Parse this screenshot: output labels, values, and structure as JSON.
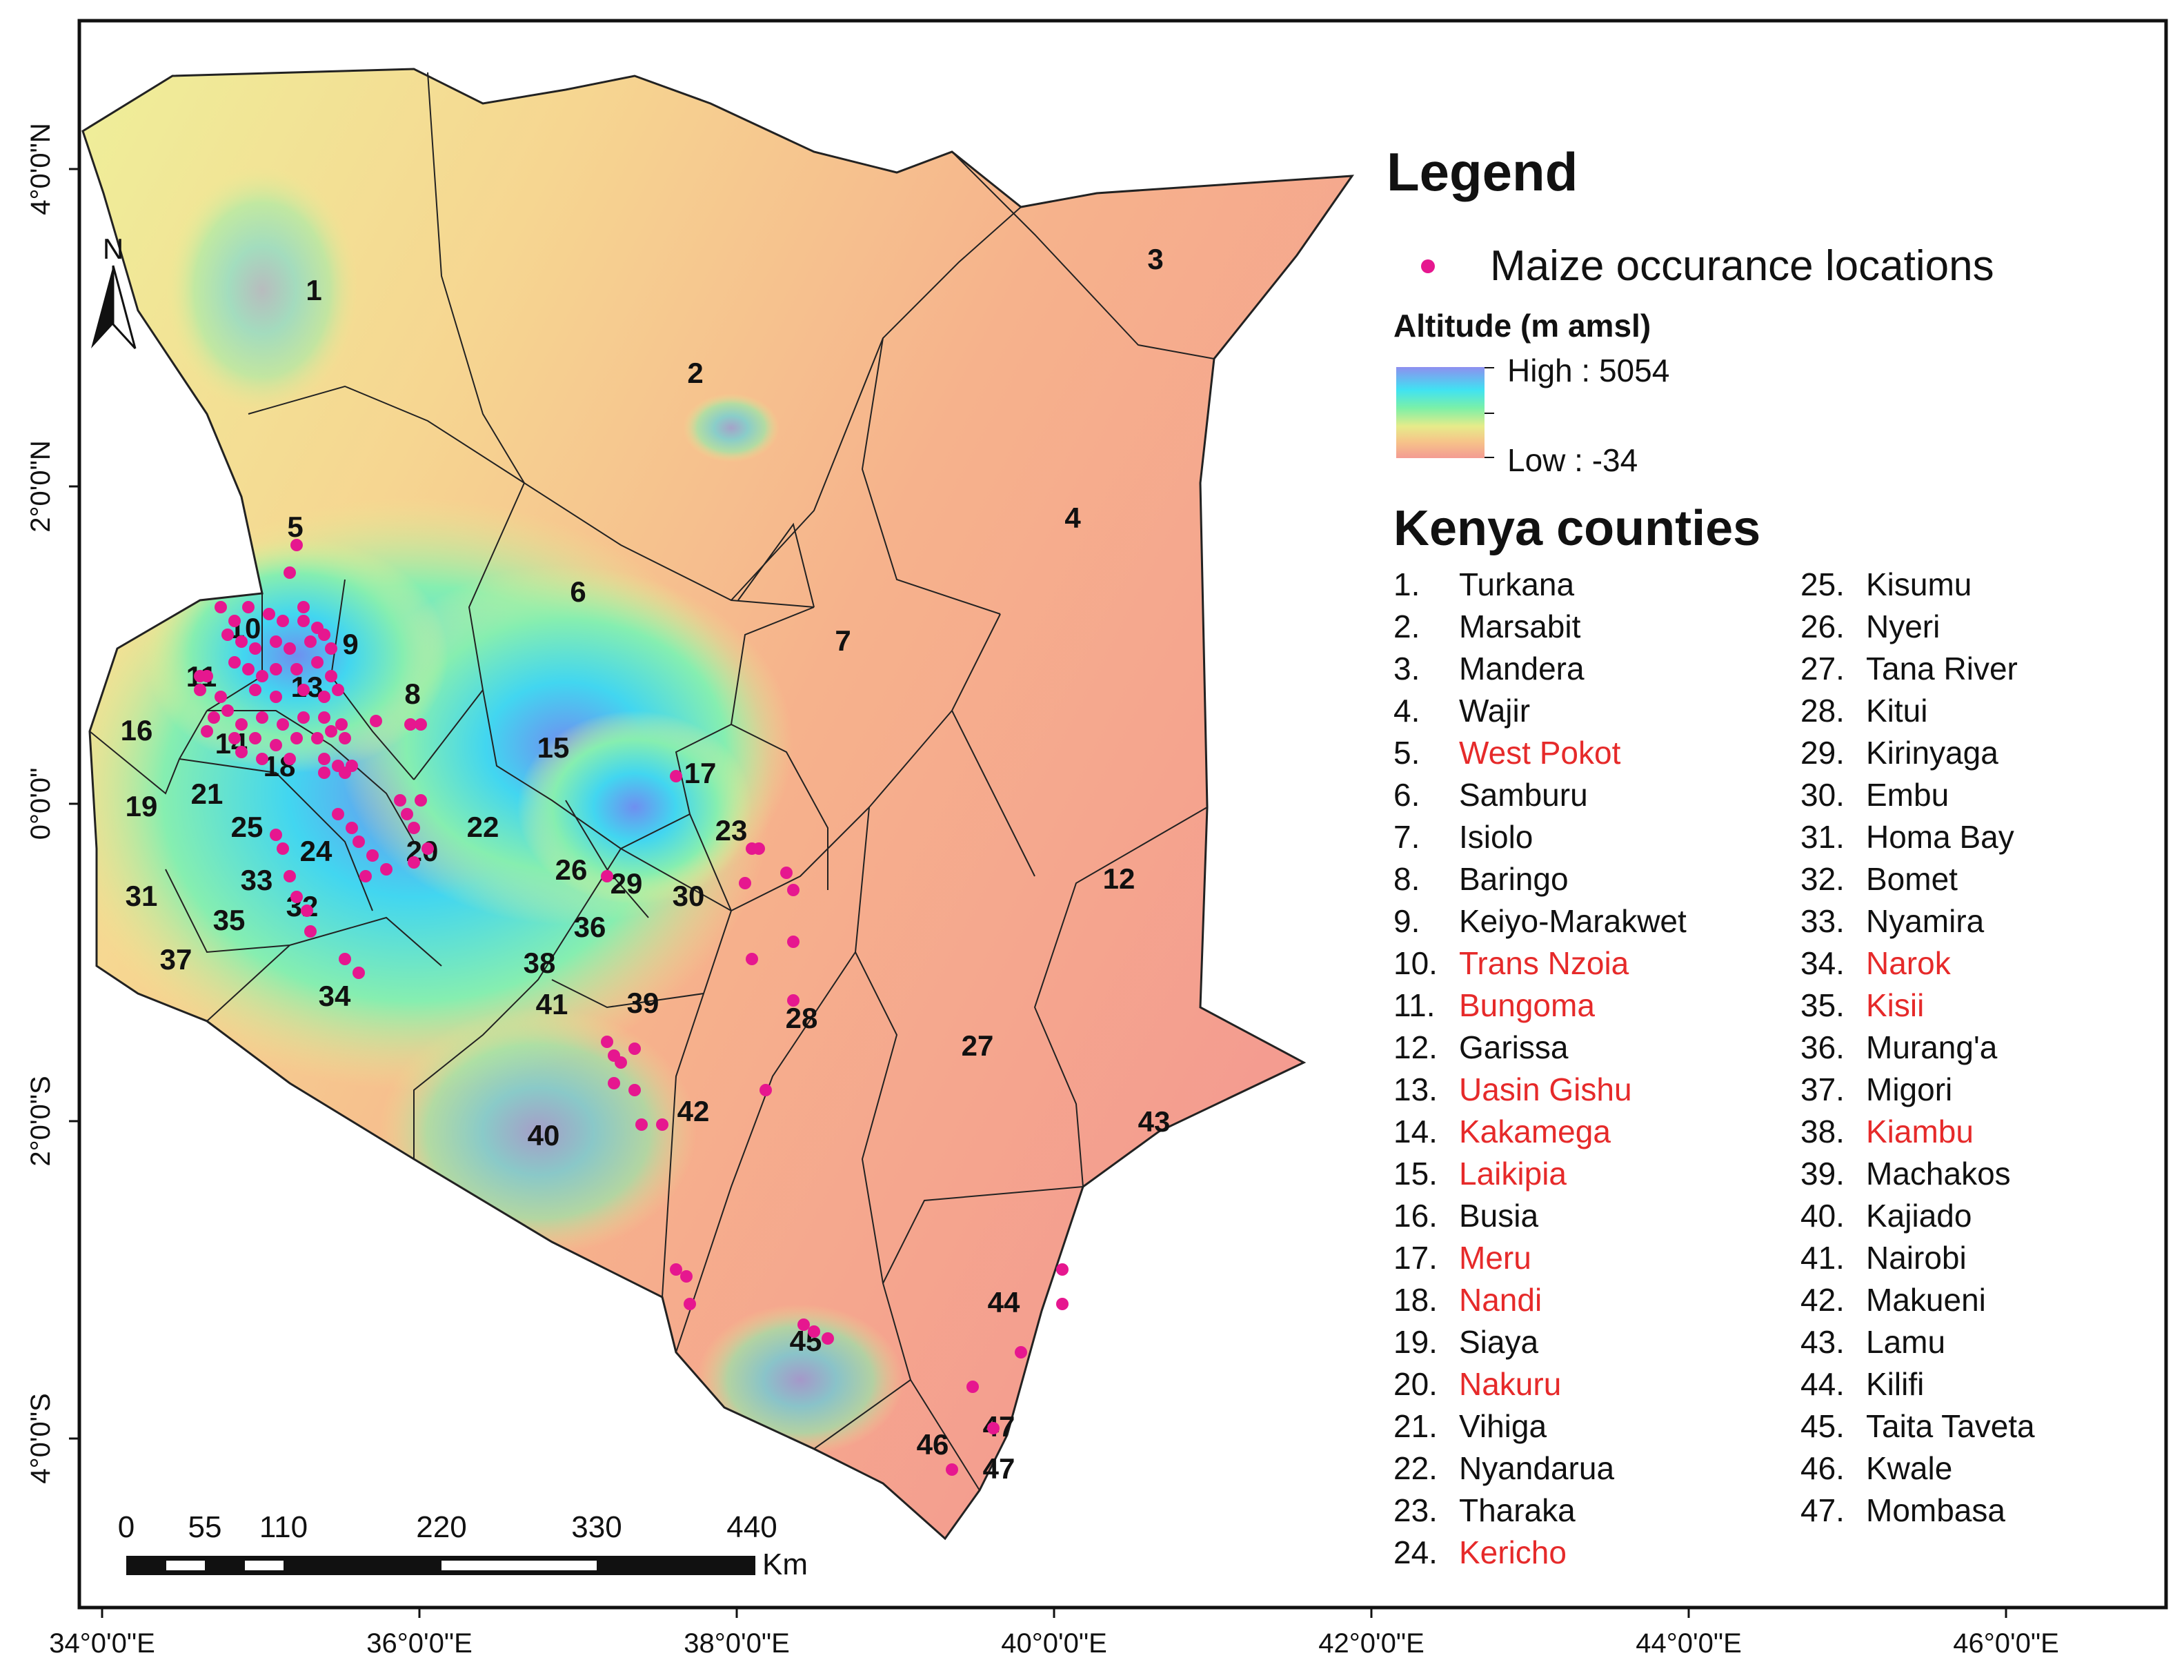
{
  "map": {
    "north_arrow_label": "N",
    "lat_ticks": [
      "4°0'0\"N",
      "2°0'0\"N",
      "0°0'0\"",
      "2°0'0\"S",
      "4°0'0\"S"
    ],
    "lon_ticks": [
      "34°0'0\"E",
      "36°0'0\"E",
      "38°0'0\"E",
      "40°0'0\"E",
      "42°0'0\"E",
      "44°0'0\"E",
      "46°0'0\"E"
    ],
    "scale_bar": {
      "labels": [
        "0",
        "55",
        "110",
        "220",
        "330",
        "440"
      ],
      "unit": "Km"
    },
    "county_numbers": [
      "1",
      "2",
      "3",
      "4",
      "5",
      "6",
      "7",
      "8",
      "9",
      "10",
      "11",
      "12",
      "13",
      "14",
      "15",
      "16",
      "17",
      "18",
      "19",
      "20",
      "21",
      "22",
      "23",
      "24",
      "25",
      "26",
      "27",
      "28",
      "29",
      "30",
      "31",
      "32",
      "33",
      "34",
      "35",
      "36",
      "37",
      "38",
      "39",
      "40",
      "41",
      "42",
      "43",
      "44",
      "45",
      "46",
      "47",
      "47"
    ],
    "colors": {
      "point": "#e6178f",
      "highlight_text": "#e62a2a",
      "border": "#222222"
    }
  },
  "legend": {
    "title": "Legend",
    "point_label": "Maize occurance locations",
    "altitude_title": "Altitude (m amsl)",
    "altitude_high": "High : 5054",
    "altitude_low": "Low : -34",
    "counties_title": "Kenya counties",
    "counties": [
      {
        "num": "1.",
        "name": "Turkana",
        "highlight": false
      },
      {
        "num": "2.",
        "name": "Marsabit",
        "highlight": false
      },
      {
        "num": "3.",
        "name": "Mandera",
        "highlight": false
      },
      {
        "num": "4.",
        "name": "Wajir",
        "highlight": false
      },
      {
        "num": "5.",
        "name": "West Pokot",
        "highlight": true
      },
      {
        "num": "6.",
        "name": "Samburu",
        "highlight": false
      },
      {
        "num": "7.",
        "name": "Isiolo",
        "highlight": false
      },
      {
        "num": "8.",
        "name": "Baringo",
        "highlight": false
      },
      {
        "num": "9.",
        "name": "Keiyo-Marakwet",
        "highlight": false
      },
      {
        "num": "10.",
        "name": "Trans Nzoia",
        "highlight": true
      },
      {
        "num": "11.",
        "name": "Bungoma",
        "highlight": true
      },
      {
        "num": "12.",
        "name": "Garissa",
        "highlight": false
      },
      {
        "num": "13.",
        "name": "Uasin Gishu",
        "highlight": true
      },
      {
        "num": "14.",
        "name": "Kakamega",
        "highlight": true
      },
      {
        "num": "15.",
        "name": "Laikipia",
        "highlight": true
      },
      {
        "num": "16.",
        "name": "Busia",
        "highlight": false
      },
      {
        "num": "17.",
        "name": "Meru",
        "highlight": true
      },
      {
        "num": "18.",
        "name": "Nandi",
        "highlight": true
      },
      {
        "num": "19.",
        "name": "Siaya",
        "highlight": false
      },
      {
        "num": "20.",
        "name": "Nakuru",
        "highlight": true
      },
      {
        "num": "21.",
        "name": "Vihiga",
        "highlight": false
      },
      {
        "num": "22.",
        "name": "Nyandarua",
        "highlight": false
      },
      {
        "num": "23.",
        "name": "Tharaka",
        "highlight": false
      },
      {
        "num": "24.",
        "name": "Kericho",
        "highlight": true
      },
      {
        "num": "25.",
        "name": "Kisumu",
        "highlight": false
      },
      {
        "num": "26.",
        "name": "Nyeri",
        "highlight": false
      },
      {
        "num": "27.",
        "name": "Tana River",
        "highlight": false
      },
      {
        "num": "28.",
        "name": "Kitui",
        "highlight": false
      },
      {
        "num": "29.",
        "name": "Kirinyaga",
        "highlight": false
      },
      {
        "num": "30.",
        "name": "Embu",
        "highlight": false
      },
      {
        "num": "31.",
        "name": "Homa Bay",
        "highlight": false
      },
      {
        "num": "32.",
        "name": "Bomet",
        "highlight": false
      },
      {
        "num": "33.",
        "name": "Nyamira",
        "highlight": false
      },
      {
        "num": "34.",
        "name": "Narok",
        "highlight": true
      },
      {
        "num": "35.",
        "name": "Kisii",
        "highlight": true
      },
      {
        "num": "36.",
        "name": "Murang'a",
        "highlight": false
      },
      {
        "num": "37.",
        "name": "Migori",
        "highlight": false
      },
      {
        "num": "38.",
        "name": "Kiambu",
        "highlight": true
      },
      {
        "num": "39.",
        "name": "Machakos",
        "highlight": false
      },
      {
        "num": "40.",
        "name": "Kajiado",
        "highlight": false
      },
      {
        "num": "41.",
        "name": "Nairobi",
        "highlight": false
      },
      {
        "num": "42.",
        "name": "Makueni",
        "highlight": false
      },
      {
        "num": "43.",
        "name": "Lamu",
        "highlight": false
      },
      {
        "num": "44.",
        "name": "Kilifi",
        "highlight": false
      },
      {
        "num": "45.",
        "name": "Taita Taveta",
        "highlight": false
      },
      {
        "num": "46.",
        "name": "Kwale",
        "highlight": false
      },
      {
        "num": "47.",
        "name": "Mombasa",
        "highlight": false
      }
    ]
  }
}
